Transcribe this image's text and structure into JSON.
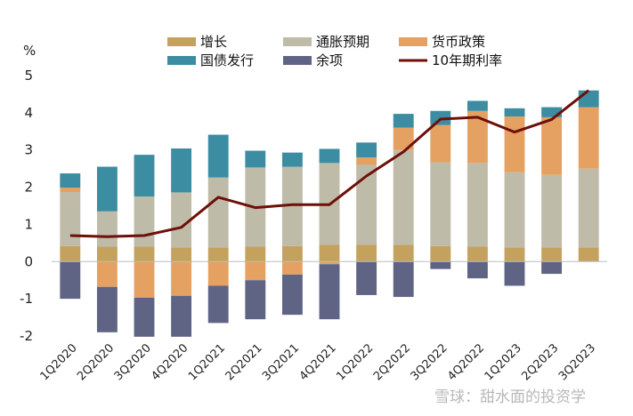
{
  "chart_data": {
    "type": "bar",
    "stacked": true,
    "ylabel": "%",
    "ylim": [
      -2,
      5
    ],
    "yticks": [
      -2,
      -1,
      0,
      1,
      2,
      3,
      4,
      5
    ],
    "categories": [
      "1Q2020",
      "2Q2020",
      "3Q2020",
      "4Q2020",
      "1Q2021",
      "2Q2021",
      "3Q2021",
      "4Q2021",
      "1Q2022",
      "2Q2022",
      "3Q2022",
      "4Q2022",
      "1Q2023",
      "2Q2023",
      "3Q2023"
    ],
    "series": [
      {
        "name": "增长",
        "color": "#C4A25E",
        "values": [
          0.42,
          0.4,
          0.4,
          0.38,
          0.38,
          0.4,
          0.42,
          0.45,
          0.45,
          0.45,
          0.42,
          0.4,
          0.38,
          0.38,
          0.38
        ]
      },
      {
        "name": "通胀预期",
        "color": "#BFBBA9",
        "values": [
          1.45,
          0.95,
          1.35,
          1.48,
          1.88,
          2.13,
          2.13,
          2.2,
          2.15,
          2.55,
          2.25,
          2.25,
          2.02,
          1.95,
          2.12
        ]
      },
      {
        "name": "货币政策",
        "color": "#E5A161",
        "values": [
          0.12,
          -0.68,
          -0.97,
          -0.92,
          -0.65,
          -0.5,
          -0.35,
          -0.07,
          0.2,
          0.6,
          1.0,
          1.4,
          1.5,
          1.55,
          1.65
        ]
      },
      {
        "name": "国债发行",
        "color": "#3C8CA2",
        "values": [
          0.38,
          1.2,
          1.12,
          1.18,
          1.15,
          0.45,
          0.38,
          0.38,
          0.4,
          0.37,
          0.38,
          0.27,
          0.22,
          0.27,
          0.45
        ]
      },
      {
        "name": "余项",
        "color": "#5F6485",
        "values": [
          -1.0,
          -1.22,
          -1.05,
          -1.1,
          -1.0,
          -1.05,
          -1.08,
          -1.48,
          -0.9,
          -0.95,
          -0.2,
          -0.45,
          -0.65,
          -0.33,
          0.0
        ]
      }
    ],
    "line": {
      "name": "10年期利率",
      "color": "#6E0F08",
      "values": [
        0.7,
        0.67,
        0.7,
        0.92,
        1.73,
        1.45,
        1.53,
        1.53,
        2.3,
        2.95,
        3.83,
        3.88,
        3.48,
        3.82,
        4.6
      ]
    },
    "legend_position": "top",
    "grid": false
  },
  "watermark": "雪球：甜水面的投资学"
}
